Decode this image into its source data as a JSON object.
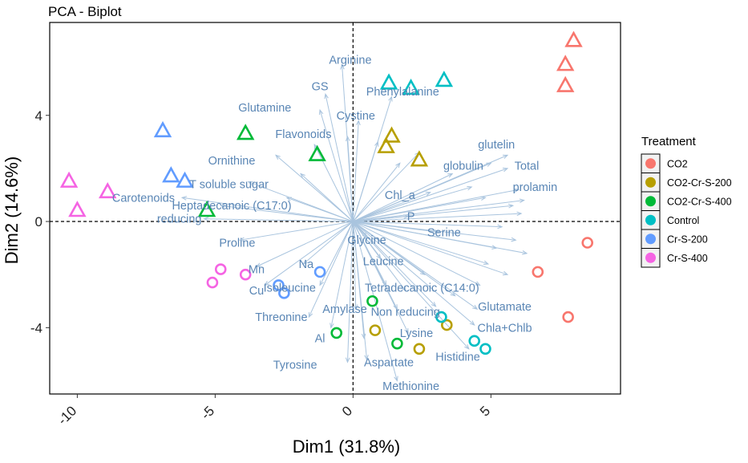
{
  "chart_data": {
    "type": "scatter",
    "title": "PCA - Biplot",
    "xlabel": "Dim1 (31.8%)",
    "ylabel": "Dim2 (14.6%)",
    "xlim": [
      -11,
      9.7
    ],
    "ylim": [
      -6.5,
      7.5
    ],
    "xticks": [
      -10,
      -5,
      0,
      5
    ],
    "xtick_labels": [
      "-10",
      "-5",
      "0",
      "5"
    ],
    "yticks": [
      -4,
      0,
      4
    ],
    "ytick_labels": [
      "-4",
      "0",
      "4"
    ],
    "legend": {
      "title": "Treatment",
      "position": "right",
      "entries": [
        {
          "label": "CO2",
          "color": "#F8766D"
        },
        {
          "label": "CO2-Cr-S-200",
          "color": "#B79F00"
        },
        {
          "label": "CO2-Cr-S-400",
          "color": "#00BA38"
        },
        {
          "label": "Control",
          "color": "#00BFC4"
        },
        {
          "label": "Cr-S-200",
          "color": "#619CFF"
        },
        {
          "label": "Cr-S-400",
          "color": "#F564E3"
        }
      ]
    },
    "series": [
      {
        "name": "CO2",
        "color": "#F8766D",
        "points": [
          {
            "x": 8.0,
            "y": 6.8,
            "shape": "triangle"
          },
          {
            "x": 7.7,
            "y": 5.9,
            "shape": "triangle"
          },
          {
            "x": 7.7,
            "y": 5.1,
            "shape": "triangle"
          },
          {
            "x": 8.5,
            "y": -0.8,
            "shape": "circle"
          },
          {
            "x": 6.7,
            "y": -1.9,
            "shape": "circle"
          },
          {
            "x": 7.8,
            "y": -3.6,
            "shape": "circle"
          }
        ]
      },
      {
        "name": "CO2-Cr-S-200",
        "color": "#B79F00",
        "points": [
          {
            "x": 1.4,
            "y": 3.2,
            "shape": "triangle"
          },
          {
            "x": 1.2,
            "y": 2.8,
            "shape": "triangle"
          },
          {
            "x": 2.4,
            "y": 2.3,
            "shape": "triangle"
          },
          {
            "x": 3.4,
            "y": -3.9,
            "shape": "circle"
          },
          {
            "x": 0.8,
            "y": -4.1,
            "shape": "circle"
          },
          {
            "x": 2.4,
            "y": -4.8,
            "shape": "circle"
          }
        ]
      },
      {
        "name": "CO2-Cr-S-400",
        "color": "#00BA38",
        "points": [
          {
            "x": -3.9,
            "y": 3.3,
            "shape": "triangle"
          },
          {
            "x": -1.3,
            "y": 2.5,
            "shape": "triangle"
          },
          {
            "x": -5.3,
            "y": 0.4,
            "shape": "triangle"
          },
          {
            "x": 0.7,
            "y": -3.0,
            "shape": "circle"
          },
          {
            "x": -0.6,
            "y": -4.2,
            "shape": "circle"
          },
          {
            "x": 1.6,
            "y": -4.6,
            "shape": "circle"
          }
        ]
      },
      {
        "name": "Control",
        "color": "#00BFC4",
        "points": [
          {
            "x": 1.3,
            "y": 5.2,
            "shape": "triangle"
          },
          {
            "x": 2.1,
            "y": 5.0,
            "shape": "triangle"
          },
          {
            "x": 3.3,
            "y": 5.3,
            "shape": "triangle"
          },
          {
            "x": 3.2,
            "y": -3.6,
            "shape": "circle"
          },
          {
            "x": 4.4,
            "y": -4.5,
            "shape": "circle"
          },
          {
            "x": 4.8,
            "y": -4.8,
            "shape": "circle"
          }
        ]
      },
      {
        "name": "Cr-S-200",
        "color": "#619CFF",
        "points": [
          {
            "x": -6.9,
            "y": 3.4,
            "shape": "triangle"
          },
          {
            "x": -6.6,
            "y": 1.7,
            "shape": "triangle"
          },
          {
            "x": -6.1,
            "y": 1.5,
            "shape": "triangle"
          },
          {
            "x": -1.2,
            "y": -1.9,
            "shape": "circle"
          },
          {
            "x": -2.7,
            "y": -2.4,
            "shape": "circle"
          },
          {
            "x": -2.5,
            "y": -2.7,
            "shape": "circle"
          }
        ]
      },
      {
        "name": "Cr-S-400",
        "color": "#F564E3",
        "points": [
          {
            "x": -10.3,
            "y": 1.5,
            "shape": "triangle"
          },
          {
            "x": -8.9,
            "y": 1.1,
            "shape": "triangle"
          },
          {
            "x": -10.0,
            "y": 0.4,
            "shape": "triangle"
          },
          {
            "x": -4.8,
            "y": -1.8,
            "shape": "circle"
          },
          {
            "x": -3.9,
            "y": -2.0,
            "shape": "circle"
          },
          {
            "x": -5.1,
            "y": -2.3,
            "shape": "circle"
          }
        ]
      }
    ],
    "variables": [
      {
        "name": "Arginine",
        "x": -0.4,
        "y": 5.9,
        "lx": -0.1,
        "ly": 6.1
      },
      {
        "name": "GS",
        "x": -1.0,
        "y": 4.8,
        "lx": -1.2,
        "ly": 5.1
      },
      {
        "name": "Glutamine",
        "x": -1.2,
        "y": 4.2,
        "lx": -3.2,
        "ly": 4.3
      },
      {
        "name": "Phenylalanine",
        "x": 1.4,
        "y": 4.7,
        "lx": 1.8,
        "ly": 4.9
      },
      {
        "name": "Cystine",
        "x": 0.2,
        "y": 3.8,
        "lx": 0.1,
        "ly": 4.0
      },
      {
        "name": "Flavonoids",
        "x": -0.2,
        "y": 3.2,
        "lx": -1.8,
        "ly": 3.3
      },
      {
        "name": "Ornithine",
        "x": -2.8,
        "y": 2.5,
        "lx": -4.4,
        "ly": 2.3
      },
      {
        "name": "T soluble sugar",
        "x": -3.8,
        "y": 1.5,
        "lx": -4.5,
        "ly": 1.4
      },
      {
        "name": "Carotenoids",
        "x": -6.2,
        "y": 0.9,
        "lx": -7.6,
        "ly": 0.9
      },
      {
        "name": "Heptadecanoic (C17:0)",
        "x": -4.8,
        "y": 0.6,
        "lx": -4.4,
        "ly": 0.6
      },
      {
        "name": "reducing",
        "x": -5.4,
        "y": 0.1,
        "lx": -6.3,
        "ly": 0.1
      },
      {
        "name": "Proline",
        "x": -4.1,
        "y": -0.7,
        "lx": -4.2,
        "ly": -0.8
      },
      {
        "name": "Mn",
        "x": -3.5,
        "y": -1.7,
        "lx": -3.5,
        "ly": -1.8
      },
      {
        "name": "Cu",
        "x": -3.2,
        "y": -2.4,
        "lx": -3.5,
        "ly": -2.6
      },
      {
        "name": "Na",
        "x": -1.8,
        "y": -1.6,
        "lx": -1.7,
        "ly": -1.6
      },
      {
        "name": "Isoleucine",
        "x": -1.2,
        "y": -2.4,
        "lx": -2.3,
        "ly": -2.5
      },
      {
        "name": "Threonine",
        "x": -1.6,
        "y": -3.6,
        "lx": -2.6,
        "ly": -3.6
      },
      {
        "name": "Al",
        "x": -0.8,
        "y": -4.0,
        "lx": -1.2,
        "ly": -4.4
      },
      {
        "name": "Tyrosine",
        "x": -0.2,
        "y": -5.3,
        "lx": -2.1,
        "ly": -5.4
      },
      {
        "name": "Aspartate",
        "x": 0.5,
        "y": -5.2,
        "lx": 1.3,
        "ly": -5.3
      },
      {
        "name": "Methionine",
        "x": 1.6,
        "y": -6.0,
        "lx": 2.1,
        "ly": -6.2
      },
      {
        "name": "Amylase",
        "x": 0.1,
        "y": -3.3,
        "lx": -0.3,
        "ly": -3.3
      },
      {
        "name": "Tetradecanoic (C14:0)",
        "x": 1.2,
        "y": -2.4,
        "lx": 2.5,
        "ly": -2.5
      },
      {
        "name": "Non reducing",
        "x": 1.6,
        "y": -3.3,
        "lx": 1.9,
        "ly": -3.4
      },
      {
        "name": "Leucine",
        "x": 1.0,
        "y": -1.4,
        "lx": 1.1,
        "ly": -1.5
      },
      {
        "name": "Glycine",
        "x": 0.5,
        "y": -0.6,
        "lx": 0.5,
        "ly": -0.7
      },
      {
        "name": "Lysine",
        "x": 2.0,
        "y": -4.2,
        "lx": 2.3,
        "ly": -4.2
      },
      {
        "name": "Histidine",
        "x": 4.2,
        "y": -4.8,
        "lx": 3.8,
        "ly": -5.1
      },
      {
        "name": "Serine",
        "x": 3.1,
        "y": -0.4,
        "lx": 3.3,
        "ly": -0.4
      },
      {
        "name": "Chl_a",
        "x": 2.8,
        "y": 1.1,
        "lx": 1.7,
        "ly": 1.0
      },
      {
        "name": "P",
        "x": 2.0,
        "y": 0.2,
        "lx": 2.1,
        "ly": 0.2
      },
      {
        "name": "globulin",
        "x": 5.0,
        "y": 2.2,
        "lx": 4.0,
        "ly": 2.1
      },
      {
        "name": "glutelin",
        "x": 5.6,
        "y": 2.5,
        "lx": 5.2,
        "ly": 2.9
      },
      {
        "name": "Total",
        "x": 5.6,
        "y": 2.0,
        "lx": 6.3,
        "ly": 2.1
      },
      {
        "name": "prolamin",
        "x": 6.0,
        "y": 1.2,
        "lx": 6.6,
        "ly": 1.3
      },
      {
        "name": "Glutamate",
        "x": 4.5,
        "y": -3.3,
        "lx": 5.5,
        "ly": -3.2
      },
      {
        "name": "Chla+Chlb",
        "x": 4.4,
        "y": -3.9,
        "lx": 5.5,
        "ly": -4.0
      }
    ],
    "extra_arrows": [
      {
        "x": 6.2,
        "y": 0.8
      },
      {
        "x": 5.8,
        "y": 0.6
      },
      {
        "x": 6.1,
        "y": 0.3
      },
      {
        "x": 5.4,
        "y": -0.2
      },
      {
        "x": 5.9,
        "y": -0.7
      },
      {
        "x": 5.2,
        "y": -1.0
      },
      {
        "x": 6.3,
        "y": -1.2
      },
      {
        "x": 4.9,
        "y": -1.6
      },
      {
        "x": 5.6,
        "y": -2.0
      },
      {
        "x": 4.6,
        "y": -2.4
      },
      {
        "x": 3.7,
        "y": -2.8
      },
      {
        "x": 3.0,
        "y": -3.2
      },
      {
        "x": 3.6,
        "y": 1.8
      },
      {
        "x": 2.4,
        "y": 2.6
      },
      {
        "x": 1.7,
        "y": 2.2
      },
      {
        "x": 0.9,
        "y": 3.0
      },
      {
        "x": 4.3,
        "y": 1.3
      },
      {
        "x": 4.8,
        "y": 0.9
      },
      {
        "x": -1.9,
        "y": 1.8
      },
      {
        "x": -2.4,
        "y": 0.9
      },
      {
        "x": -1.4,
        "y": 2.9
      },
      {
        "x": 2.6,
        "y": -2.0
      },
      {
        "x": 1.9,
        "y": -2.6
      },
      {
        "x": 0.4,
        "y": -4.4
      }
    ]
  }
}
